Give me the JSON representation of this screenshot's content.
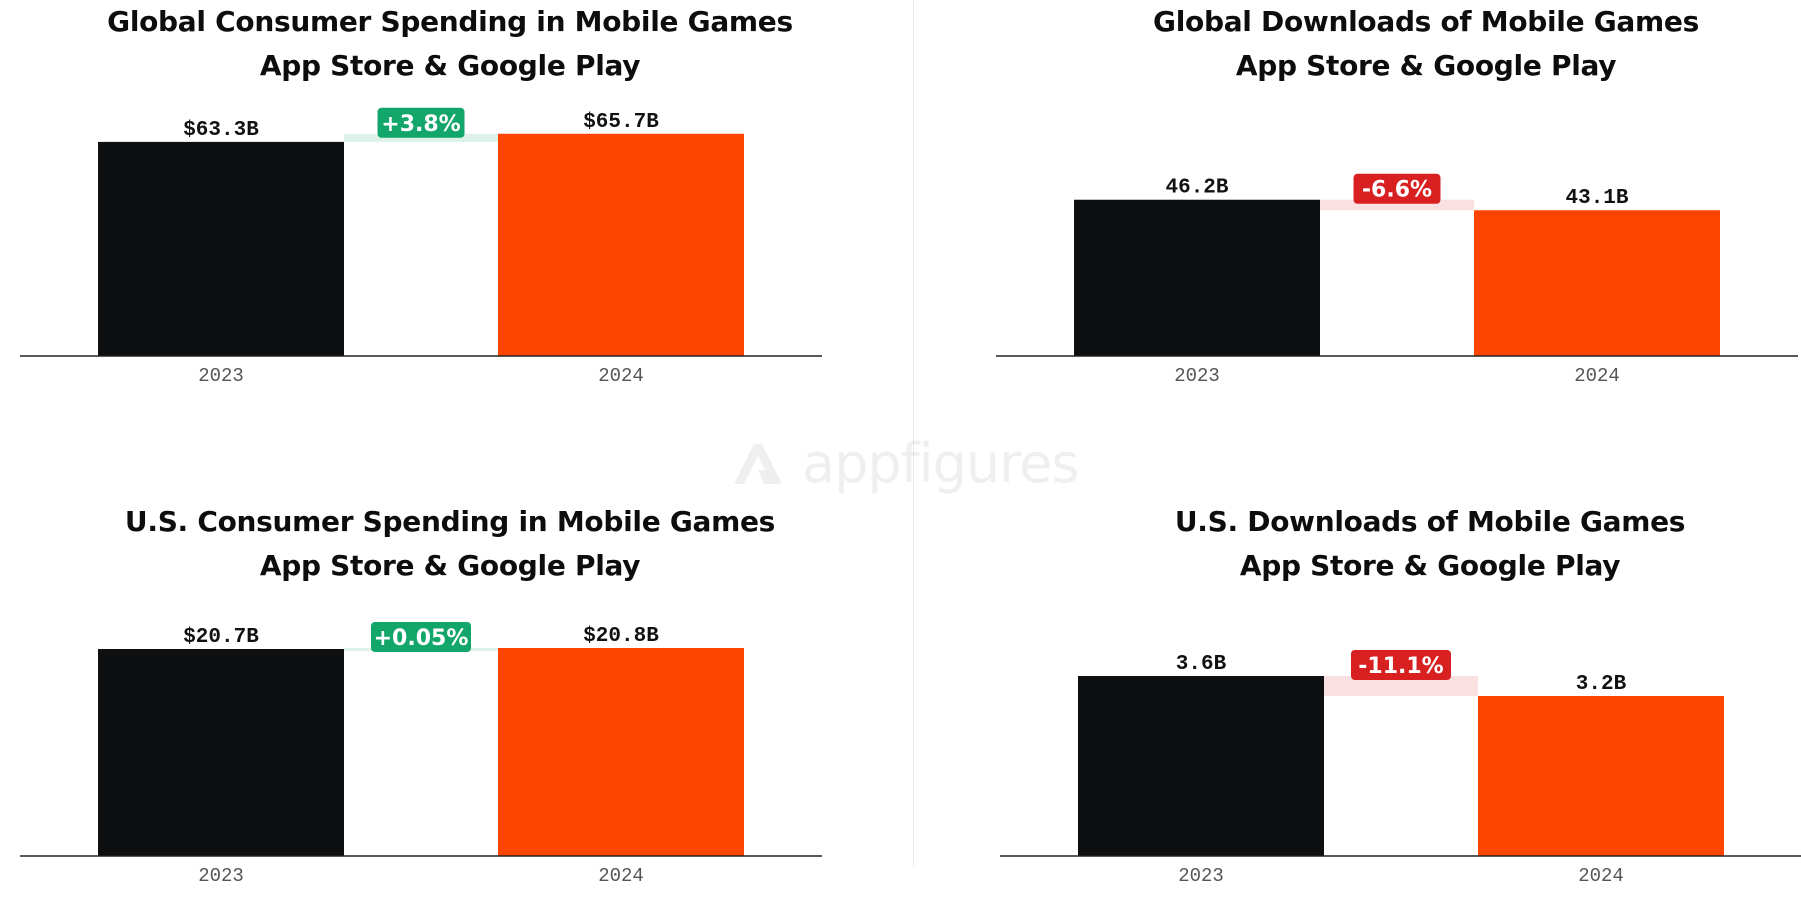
{
  "watermark": {
    "text": "appfigures"
  },
  "colors": {
    "bar_2023": "#0e0f11",
    "bar_2024": "#fe4500",
    "positive": "#13a66a",
    "negative": "#d92020",
    "axis": "#222222"
  },
  "chart_data": [
    {
      "type": "bar",
      "title": "Global Consumer Spending in Mobile Games\nApp Store & Google Play",
      "categories": [
        "2023",
        "2024"
      ],
      "values": [
        63.3,
        65.7
      ],
      "value_labels": [
        "$63.3B",
        "$65.7B"
      ],
      "change_label": "+3.8%",
      "change_direction": "up",
      "ylim": [
        0,
        68
      ]
    },
    {
      "type": "bar",
      "title": "Global Downloads of Mobile Games\nApp Store & Google Play",
      "categories": [
        "2023",
        "2024"
      ],
      "values": [
        46.2,
        43.1
      ],
      "value_labels": [
        "46.2B",
        "43.1B"
      ],
      "change_label": "-6.6%",
      "change_direction": "down",
      "ylim": [
        0,
        68
      ]
    },
    {
      "type": "bar",
      "title": "U.S. Consumer Spending in Mobile Games\nApp Store & Google Play",
      "categories": [
        "2023",
        "2024"
      ],
      "values": [
        20.7,
        20.8
      ],
      "value_labels": [
        "$20.7B",
        "$20.8B"
      ],
      "change_label": "+0.05%",
      "change_direction": "up",
      "ylim": [
        0,
        23
      ]
    },
    {
      "type": "bar",
      "title": "U.S. Downloads of Mobile Games\nApp Store & Google Play",
      "categories": [
        "2023",
        "2024"
      ],
      "values": [
        3.6,
        3.2
      ],
      "value_labels": [
        "3.6B",
        "3.2B"
      ],
      "change_label": "-11.1%",
      "change_direction": "down",
      "ylim": [
        0,
        4.6
      ]
    }
  ]
}
